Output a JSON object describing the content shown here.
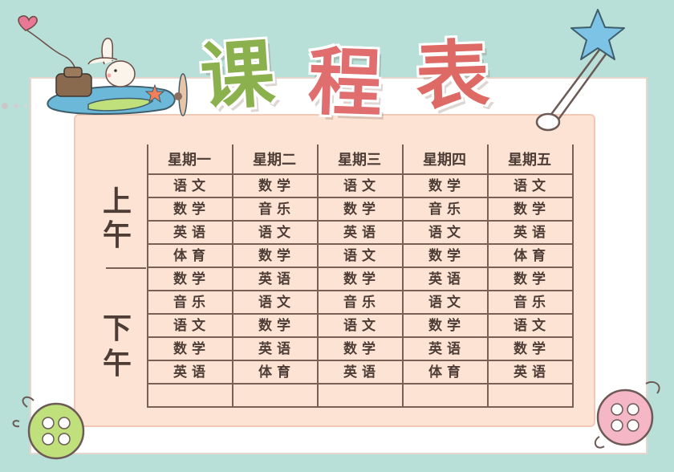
{
  "title": {
    "char1": "课",
    "char2": "程",
    "char3": "表"
  },
  "days": [
    "星期一",
    "星期二",
    "星期三",
    "星期四",
    "星期五"
  ],
  "periods": {
    "morning": [
      "上",
      "午"
    ],
    "afternoon": [
      "下",
      "午"
    ]
  },
  "rows": [
    [
      "语文",
      "数学",
      "语文",
      "数学",
      "语文"
    ],
    [
      "数学",
      "音乐",
      "数学",
      "音乐",
      "数学"
    ],
    [
      "英语",
      "语文",
      "英语",
      "语文",
      "英语"
    ],
    [
      "体育",
      "数学",
      "语文",
      "数学",
      "体育"
    ],
    [
      "数学",
      "英语",
      "数学",
      "英语",
      "数学"
    ],
    [
      "音乐",
      "语文",
      "音乐",
      "语文",
      "音乐"
    ],
    [
      "语文",
      "数学",
      "语文",
      "数学",
      "语文"
    ],
    [
      "数学",
      "英语",
      "数学",
      "英语",
      "数学"
    ],
    [
      "英语",
      "体育",
      "英语",
      "体育",
      "英语"
    ],
    [
      "",
      "",
      "",
      "",
      ""
    ]
  ],
  "colors": {
    "background": "#b8e0d8",
    "sheet": "#fde3d3",
    "title_green": "#8bb14e",
    "title_red": "#e06e6e",
    "grid_line": "#7a6054",
    "text": "#4d3d36"
  },
  "icons": [
    "airplane-icon",
    "rabbit-icon",
    "heart-kite-icon",
    "safety-pin-icon",
    "star-icon",
    "green-button-icon",
    "pink-button-icon"
  ]
}
